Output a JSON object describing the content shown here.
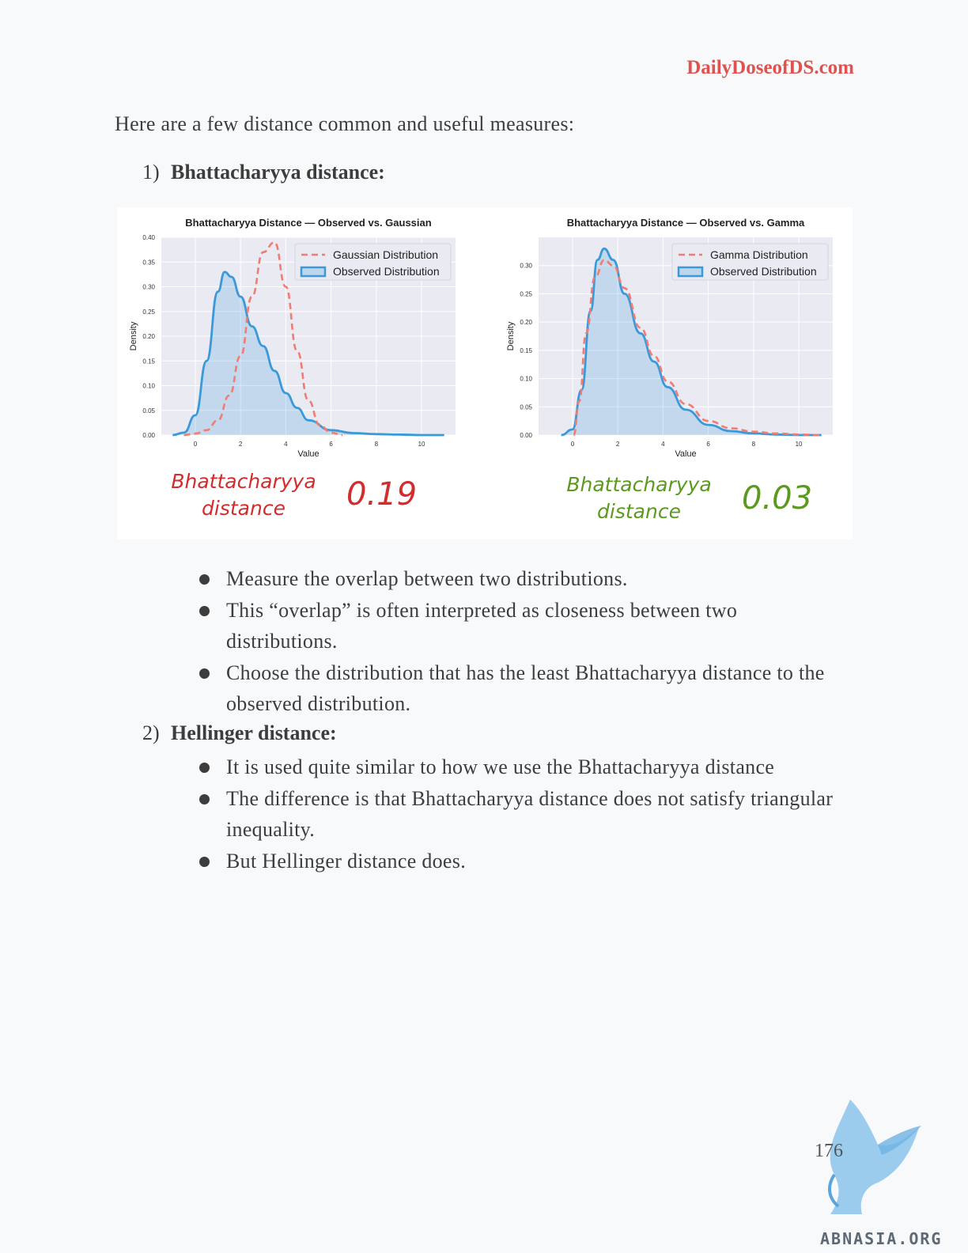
{
  "header": {
    "brand": "DailyDoseofDS.com"
  },
  "intro": "Here are a few distance common and useful measures:",
  "sections": [
    {
      "number": "1)",
      "title": "Bhattacharyya distance:",
      "bullets": [
        "Measure the overlap between two distributions.",
        "This “overlap” is often interpreted as closeness between two distributions.",
        "Choose the distribution that has the least Bhattacharyya distance to the observed distribution."
      ]
    },
    {
      "number": "2)",
      "title": "Hellinger distance:",
      "bullets": [
        "It is used quite similar to how we use the Bhattacharyya distance",
        "The difference is that Bhattacharyya distance does not satisfy triangular inequality.",
        "But Hellinger distance does."
      ]
    }
  ],
  "figure": {
    "annotations": [
      {
        "label": "Bhattacharyya distance",
        "value": "0.19",
        "color": "#d42c2c"
      },
      {
        "label": "Bhattacharyya distance",
        "value": "0.03",
        "color": "#5b9a1f"
      }
    ]
  },
  "chart_data": [
    {
      "type": "line",
      "title": "Bhattacharyya Distance — Observed  vs. Gaussian",
      "xlabel": "Value",
      "ylabel": "Density",
      "xlim": [
        -1.5,
        11.5
      ],
      "ylim": [
        0,
        0.4
      ],
      "xticks": [
        0,
        2,
        4,
        6,
        8,
        10
      ],
      "yticks": [
        "0.00",
        "0.05",
        "0.10",
        "0.15",
        "0.20",
        "0.25",
        "0.30",
        "0.35",
        "0.40"
      ],
      "grid": true,
      "legend_position": "top-right",
      "series": [
        {
          "name": "Gaussian Distribution",
          "style": "dashed",
          "color": "#f07c74",
          "x": [
            -0.5,
            0,
            0.5,
            1,
            1.5,
            2,
            2.5,
            3,
            3.5,
            4,
            4.5,
            5,
            5.5,
            6,
            6.5
          ],
          "y": [
            0.0,
            0.003,
            0.01,
            0.03,
            0.08,
            0.16,
            0.28,
            0.37,
            0.39,
            0.3,
            0.17,
            0.07,
            0.02,
            0.005,
            0.0
          ]
        },
        {
          "name": "Observed Distribution",
          "style": "filled",
          "color": "#3a9ad9",
          "x": [
            -1,
            -0.5,
            0,
            0.5,
            1,
            1.3,
            1.6,
            2,
            2.5,
            3,
            3.5,
            4,
            4.5,
            5,
            6,
            7,
            8,
            9,
            10,
            11
          ],
          "y": [
            0.0,
            0.005,
            0.04,
            0.15,
            0.29,
            0.33,
            0.32,
            0.28,
            0.22,
            0.18,
            0.13,
            0.085,
            0.055,
            0.03,
            0.01,
            0.004,
            0.002,
            0.001,
            0.0,
            0.0
          ]
        }
      ]
    },
    {
      "type": "line",
      "title": "Bhattacharyya Distance — Observed  vs. Gamma",
      "xlabel": "Value",
      "ylabel": "Density",
      "xlim": [
        -1.5,
        11.5
      ],
      "ylim": [
        0,
        0.35
      ],
      "xticks": [
        0,
        2,
        4,
        6,
        8,
        10
      ],
      "yticks": [
        "0.00",
        "0.05",
        "0.10",
        "0.15",
        "0.20",
        "0.25",
        "0.30"
      ],
      "grid": true,
      "legend_position": "top-right",
      "series": [
        {
          "name": "Gamma Distribution",
          "style": "dashed",
          "color": "#f07c74",
          "x": [
            0.05,
            0.3,
            0.6,
            1,
            1.4,
            1.8,
            2.3,
            3,
            3.6,
            4.2,
            5,
            6,
            7,
            8,
            9,
            10,
            11
          ],
          "y": [
            0.0,
            0.06,
            0.18,
            0.28,
            0.31,
            0.3,
            0.26,
            0.19,
            0.14,
            0.095,
            0.055,
            0.025,
            0.012,
            0.006,
            0.003,
            0.001,
            0.0
          ]
        },
        {
          "name": "Observed Distribution",
          "style": "filled",
          "color": "#3a9ad9",
          "x": [
            -0.5,
            0,
            0.4,
            0.8,
            1.1,
            1.4,
            1.8,
            2.3,
            3,
            3.6,
            4.2,
            5,
            6,
            7,
            8,
            9,
            10,
            11
          ],
          "y": [
            0.0,
            0.01,
            0.08,
            0.22,
            0.31,
            0.33,
            0.31,
            0.25,
            0.18,
            0.13,
            0.085,
            0.045,
            0.018,
            0.007,
            0.003,
            0.001,
            0.0,
            0.0
          ]
        }
      ]
    }
  ],
  "footer": {
    "page_number": "176",
    "watermark": "ABNASIA.ORG"
  }
}
